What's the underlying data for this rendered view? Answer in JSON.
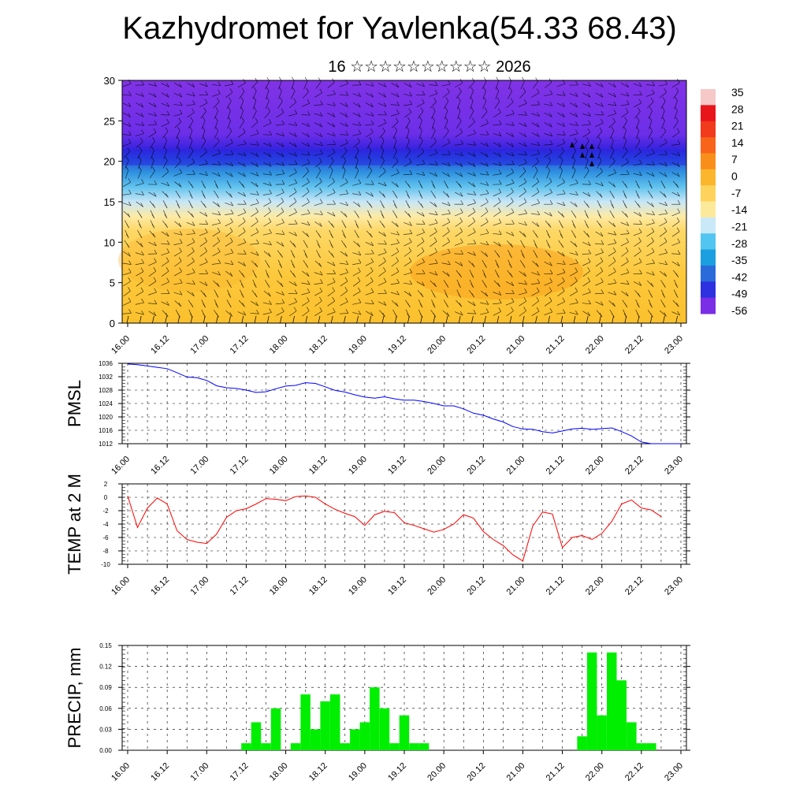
{
  "title": "Kazhydromet for Yavlenka(54.33 68.43)",
  "subtitle": "16 ☆☆☆☆☆☆☆☆☆☆ 2026",
  "chart_data": [
    {
      "type": "heatmap",
      "name": "cross-section",
      "ylim": [
        0,
        30
      ],
      "yticks": [
        0,
        5,
        10,
        15,
        20,
        25,
        30
      ],
      "x_labels": [
        "16.00",
        "16.12",
        "17.00",
        "17.12",
        "18.00",
        "18.12",
        "19.00",
        "19.12",
        "20.00",
        "20.12",
        "21.00",
        "21.12",
        "22.00",
        "22.12",
        "23.00"
      ],
      "colorbar_labels": [
        "35",
        "28",
        "21",
        "14",
        "7",
        "0",
        "-7",
        "-14",
        "-21",
        "-28",
        "-35",
        "-42",
        "-49",
        "-56"
      ],
      "colorbar_colors": [
        "#f7c8c8",
        "#e8151b",
        "#f23a1c",
        "#f7641a",
        "#f98f1a",
        "#fbb62d",
        "#fdd35b",
        "#fde99a",
        "#c9e9f8",
        "#52c5f0",
        "#1c9fe0",
        "#2a6bd9",
        "#2d31e0",
        "#7a2ee6"
      ]
    },
    {
      "type": "line",
      "name": "pmsl",
      "ylabel": "PMSL",
      "ylim": [
        1012,
        1036
      ],
      "yticks": [
        1012,
        1016,
        1020,
        1024,
        1028,
        1032,
        1036
      ],
      "x_labels": [
        "16.00",
        "16.12",
        "17.00",
        "17.12",
        "18.00",
        "18.12",
        "19.00",
        "19.12",
        "20.00",
        "20.12",
        "21.00",
        "21.12",
        "22.00",
        "22.12",
        "23.00"
      ],
      "color": "#0000ff",
      "x": [
        0,
        3,
        6,
        9,
        12,
        15,
        18,
        21,
        24,
        27,
        30,
        33,
        36,
        39,
        42,
        45,
        48,
        51,
        54,
        57,
        60,
        63,
        66,
        69,
        72,
        75,
        78,
        81,
        84,
        87,
        90,
        93,
        96,
        99,
        102,
        105,
        108,
        111,
        114,
        117,
        120,
        123,
        126,
        129,
        132,
        135,
        138,
        141,
        144,
        147,
        150,
        153,
        156,
        159,
        162,
        165,
        168
      ],
      "values": [
        1035.8,
        1035.6,
        1035.2,
        1034.8,
        1034.4,
        1033.2,
        1031.9,
        1031.7,
        1030.9,
        1029.3,
        1028.7,
        1028.5,
        1028.0,
        1027.3,
        1027.5,
        1028.4,
        1029.2,
        1029.4,
        1030.2,
        1030.0,
        1029.0,
        1027.9,
        1027.4,
        1026.6,
        1025.9,
        1025.6,
        1026.0,
        1025.4,
        1025.0,
        1025.0,
        1024.6,
        1024.0,
        1023.3,
        1023.3,
        1022.4,
        1021.1,
        1020.5,
        1019.4,
        1018.5,
        1017.1,
        1016.4,
        1016.3,
        1015.6,
        1015.2,
        1015.8,
        1016.4,
        1016.6,
        1016.3,
        1016.5,
        1016.7,
        1015.6,
        1014.3,
        1012.5,
        1012.0,
        1012.0,
        1012.0,
        1012.0
      ]
    },
    {
      "type": "line",
      "name": "temp2m",
      "ylabel": "TEMP at 2 M",
      "ylim": [
        -10,
        2
      ],
      "yticks": [
        -10,
        -8,
        -6,
        -4,
        -2,
        0,
        2
      ],
      "x_labels": [
        "16.00",
        "16.12",
        "17.00",
        "17.12",
        "18.00",
        "18.12",
        "19.00",
        "19.12",
        "20.00",
        "20.12",
        "21.00",
        "21.12",
        "22.00",
        "22.12",
        "23.00"
      ],
      "color": "#ff0000",
      "x": [
        0,
        3,
        6,
        9,
        12,
        15,
        18,
        21,
        24,
        27,
        30,
        33,
        36,
        39,
        42,
        45,
        48,
        51,
        54,
        57,
        60,
        63,
        66,
        69,
        72,
        75,
        78,
        81,
        84,
        87,
        90,
        93,
        96,
        99,
        102,
        105,
        108,
        111,
        114,
        117,
        120,
        123,
        126,
        129,
        132,
        135,
        138,
        141,
        144,
        147,
        150,
        153,
        156,
        159,
        162
      ],
      "values": [
        0.2,
        -4.5,
        -1.6,
        -0.1,
        -1.0,
        -5.0,
        -6.3,
        -6.7,
        -6.9,
        -5.5,
        -3.0,
        -2.0,
        -1.7,
        -1.0,
        -0.2,
        -0.3,
        -0.5,
        0.1,
        0.2,
        0.0,
        -1.0,
        -1.8,
        -2.4,
        -2.9,
        -4.2,
        -2.6,
        -2.1,
        -2.3,
        -3.8,
        -4.2,
        -4.7,
        -5.2,
        -4.8,
        -4.0,
        -2.6,
        -3.1,
        -5.1,
        -6.3,
        -7.2,
        -8.6,
        -9.5,
        -4.3,
        -2.2,
        -2.5,
        -7.5,
        -6.0,
        -5.7,
        -6.3,
        -5.4,
        -3.6,
        -1.0,
        -0.4,
        -1.6,
        -1.9,
        -2.9
      ]
    },
    {
      "type": "bar",
      "name": "precip",
      "ylabel": "PRECIP, mm",
      "ylim": [
        0,
        0.15
      ],
      "yticks": [
        0.0,
        0.03,
        0.06,
        0.09,
        0.12,
        0.15
      ],
      "ytick_labels": [
        "0.00",
        "0.03",
        "0.06",
        "0.09",
        "0.12",
        "0.15"
      ],
      "x_labels": [
        "16.00",
        "16.12",
        "17.00",
        "17.12",
        "18.00",
        "18.12",
        "19.00",
        "19.12",
        "20.00",
        "20.12",
        "21.00",
        "21.12",
        "22.00",
        "22.12",
        "23.00"
      ],
      "color": "#00ee00",
      "bar_width_hours": 3,
      "x": [
        36,
        39,
        42,
        45,
        48,
        51,
        54,
        57,
        60,
        63,
        66,
        69,
        72,
        75,
        78,
        81,
        84,
        87,
        90,
        93,
        96,
        99,
        102,
        132,
        135,
        138,
        141,
        144,
        147,
        150,
        153,
        156,
        159
      ],
      "values": [
        0.01,
        0.04,
        0.01,
        0.06,
        0.0,
        0.01,
        0.08,
        0.03,
        0.07,
        0.08,
        0.01,
        0.03,
        0.04,
        0.09,
        0.06,
        0.01,
        0.05,
        0.01,
        0.01,
        0.0,
        0.0,
        0.0,
        0.0,
        0.0,
        0.0,
        0.02,
        0.14,
        0.05,
        0.14,
        0.1,
        0.04,
        0.01,
        0.01
      ]
    }
  ]
}
